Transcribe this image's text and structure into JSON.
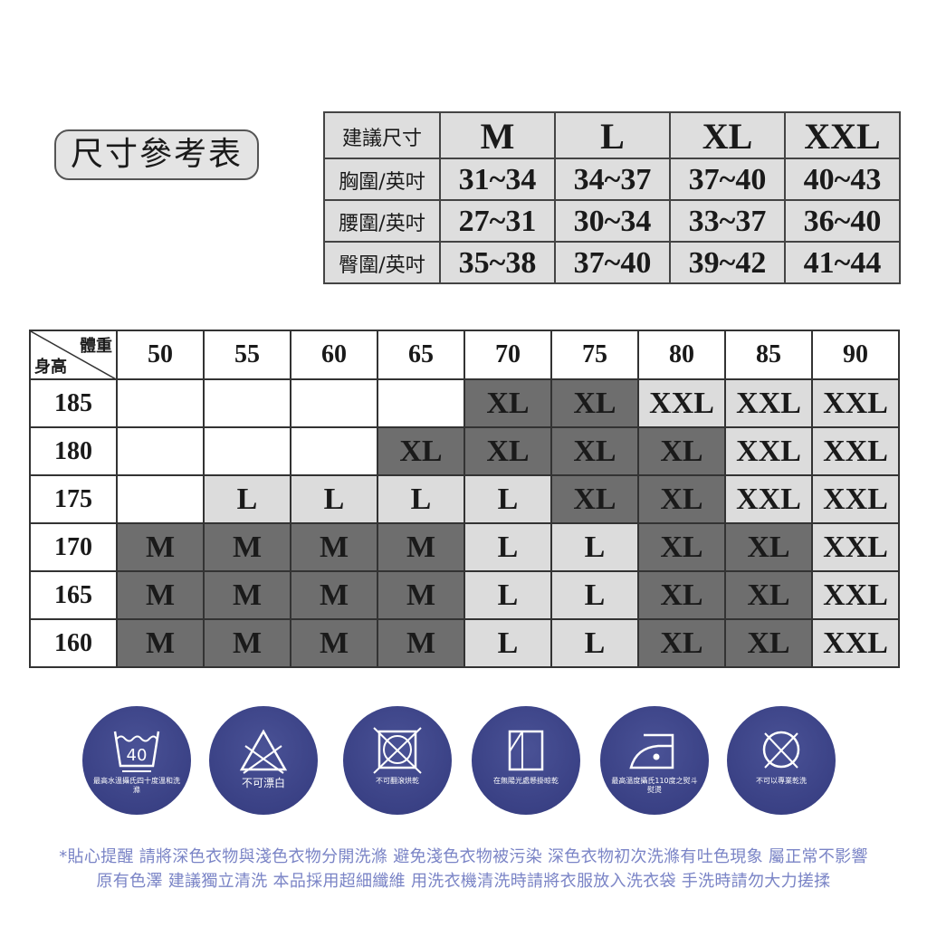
{
  "title": "尺寸參考表",
  "measurements": {
    "header": [
      "建議尺寸",
      "M",
      "L",
      "XL",
      "XXL"
    ],
    "rows": [
      [
        "胸圍/英吋",
        "31~34",
        "34~37",
        "37~40",
        "40~43"
      ],
      [
        "腰圍/英吋",
        "27~31",
        "30~34",
        "33~37",
        "36~40"
      ],
      [
        "臀圍/英吋",
        "35~38",
        "37~40",
        "39~42",
        "41~44"
      ]
    ]
  },
  "size_grid": {
    "weight_label": "體重",
    "height_label": "身高",
    "weights": [
      "50",
      "55",
      "60",
      "65",
      "70",
      "75",
      "80",
      "85",
      "90"
    ],
    "rows": [
      {
        "height": "185",
        "sizes": [
          "",
          "",
          "",
          "",
          "XL",
          "XL",
          "XXL",
          "XXL",
          "XXL"
        ]
      },
      {
        "height": "180",
        "sizes": [
          "",
          "",
          "",
          "XL",
          "XL",
          "XL",
          "XL",
          "XXL",
          "XXL"
        ]
      },
      {
        "height": "175",
        "sizes": [
          "",
          "L",
          "L",
          "L",
          "L",
          "XL",
          "XL",
          "XXL",
          "XXL"
        ]
      },
      {
        "height": "170",
        "sizes": [
          "M",
          "M",
          "M",
          "M",
          "L",
          "L",
          "XL",
          "XL",
          "XXL"
        ]
      },
      {
        "height": "165",
        "sizes": [
          "M",
          "M",
          "M",
          "M",
          "L",
          "L",
          "XL",
          "XL",
          "XXL"
        ]
      },
      {
        "height": "160",
        "sizes": [
          "M",
          "M",
          "M",
          "M",
          "L",
          "L",
          "XL",
          "XL",
          "XXL"
        ]
      }
    ],
    "colors": {
      "M": "#6e6e6e",
      "L": "#dcdcdc",
      "XL": "#6e6e6e",
      "XXL": "#dcdcdc"
    }
  },
  "care": [
    {
      "icon": "wash-40-icon",
      "number": "40",
      "caption": "最高水溫攝氏四十度溫和洗滌"
    },
    {
      "icon": "no-bleach-icon",
      "caption": "不可漂白"
    },
    {
      "icon": "no-tumble-dry-icon",
      "caption": "不可翻滾烘乾"
    },
    {
      "icon": "shade-dry-icon",
      "caption": "在無陽光處懸掛晾乾"
    },
    {
      "icon": "iron-low-icon",
      "caption": "最高溫度攝氏110度之熨斗熨燙"
    },
    {
      "icon": "no-dry-clean-icon",
      "caption": "不可以專業乾洗"
    }
  ],
  "notes": [
    "*貼心提醒 請將深色衣物與淺色衣物分開洗滌 避免淺色衣物被污染 深色衣物初次洗滌有吐色現象 屬正常不影響",
    "原有色澤 建議獨立清洗 本品採用超細纖維 用洗衣機清洗時請將衣服放入洗衣袋 手洗時請勿大力搓揉"
  ]
}
